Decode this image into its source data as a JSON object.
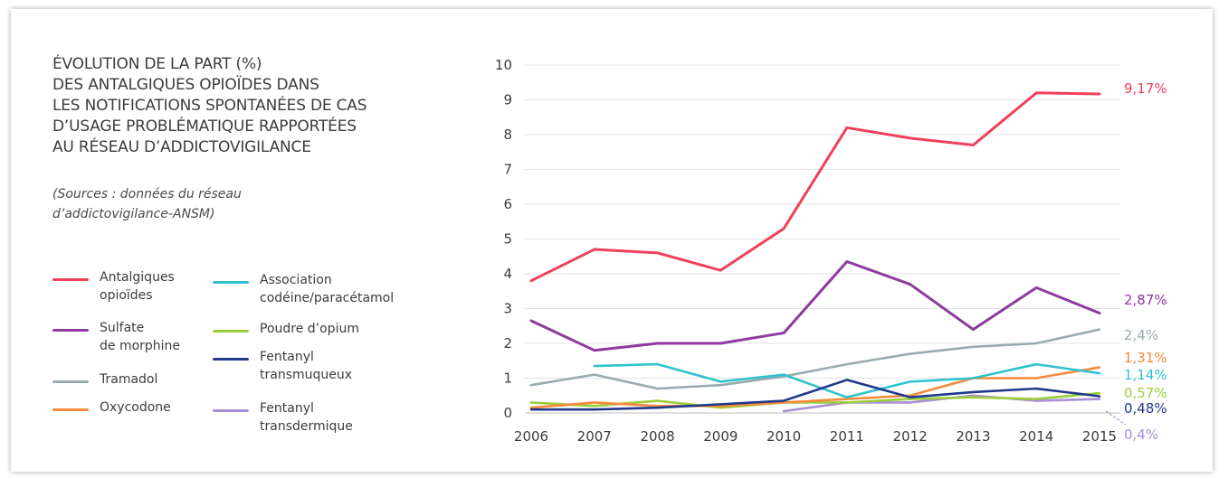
{
  "title_lines": [
    "ÉVOLUTION DE LA PART (%)",
    "DES ANTALGIQUES OPIOÏDES DANS",
    "LES NOTIFICATIONS SPONTANÉES DE CAS",
    "D’USAGE PROBLÉMATIQUE RAPPORTÉES",
    "AU RÉSEAU D’ADDICTOVIGILANCE"
  ],
  "source_lines": [
    "(Sources : données du réseau",
    "d’addictovigilance-ANSM)"
  ],
  "legend": [
    {
      "lines": [
        "Antalgiques",
        "opioïdes"
      ],
      "color": "#f0405a"
    },
    {
      "lines": [
        "Sulfate",
        "de morphine"
      ],
      "color": "#8e3a9e"
    },
    {
      "lines": [
        "Tramadol"
      ],
      "color": "#9aabb0"
    },
    {
      "lines": [
        "Oxycodone"
      ],
      "color": "#f58a3c"
    },
    {
      "lines": [
        "Association",
        "codéine/paracétamol"
      ],
      "color": "#2fc2cf"
    },
    {
      "lines": [
        "Poudre d’opium"
      ],
      "color": "#9ccd3a"
    },
    {
      "lines": [
        "Fentanyl",
        "transmuqueux"
      ],
      "color": "#1f3a8a"
    },
    {
      "lines": [
        "Fentanyl",
        "transdermique"
      ],
      "color": "#a98fd8"
    }
  ],
  "chart_data": {
    "type": "line",
    "x": [
      "2006",
      "2007",
      "2008",
      "2009",
      "2010",
      "2011",
      "2012",
      "2013",
      "2014",
      "2015"
    ],
    "ylim": [
      0,
      10
    ],
    "yticks": [
      "0",
      "1",
      "2",
      "3",
      "4",
      "5",
      "6",
      "7",
      "8",
      "9",
      "10"
    ],
    "grid": true,
    "series": [
      {
        "name": "Antalgiques opioïdes",
        "color": "#f0405a",
        "values": [
          3.8,
          4.7,
          4.6,
          4.1,
          5.3,
          8.2,
          7.9,
          7.7,
          9.2,
          9.17
        ],
        "end_label": "9,17%"
      },
      {
        "name": "Sulfate de morphine",
        "color": "#8e3a9e",
        "values": [
          2.65,
          1.8,
          2.0,
          2.0,
          2.3,
          4.35,
          3.7,
          2.4,
          3.6,
          2.87
        ],
        "end_label": "2,87%"
      },
      {
        "name": "Tramadol",
        "color": "#9aabb0",
        "values": [
          0.8,
          1.1,
          0.7,
          0.8,
          1.05,
          1.4,
          1.7,
          1.9,
          2.0,
          2.4
        ],
        "end_label": "2,4%"
      },
      {
        "name": "Oxycodone",
        "color": "#f58a3c",
        "values": [
          0.15,
          0.3,
          0.2,
          0.2,
          0.3,
          0.4,
          0.5,
          1.0,
          1.0,
          1.31
        ],
        "end_label": "1,31%"
      },
      {
        "name": "Association codéine/paracétamol",
        "color": "#2fc2cf",
        "values": [
          null,
          1.35,
          1.4,
          0.9,
          1.1,
          0.45,
          0.9,
          1.0,
          1.4,
          1.14
        ],
        "end_label": "1,14%"
      },
      {
        "name": "Poudre d’opium",
        "color": "#9ccd3a",
        "values": [
          0.3,
          0.2,
          0.35,
          0.15,
          0.3,
          0.3,
          0.4,
          0.45,
          0.4,
          0.57
        ],
        "end_label": "0,57%"
      },
      {
        "name": "Fentanyl transmuqueux",
        "color": "#1f3a8a",
        "values": [
          0.1,
          0.1,
          0.15,
          0.25,
          0.35,
          0.95,
          0.45,
          0.6,
          0.7,
          0.48
        ],
        "end_label": "0,48%"
      },
      {
        "name": "Fentanyl transdermique",
        "color": "#a98fd8",
        "values": [
          null,
          null,
          null,
          null,
          0.05,
          0.3,
          0.3,
          0.5,
          0.35,
          0.4
        ],
        "end_label": "0,4%"
      }
    ]
  }
}
